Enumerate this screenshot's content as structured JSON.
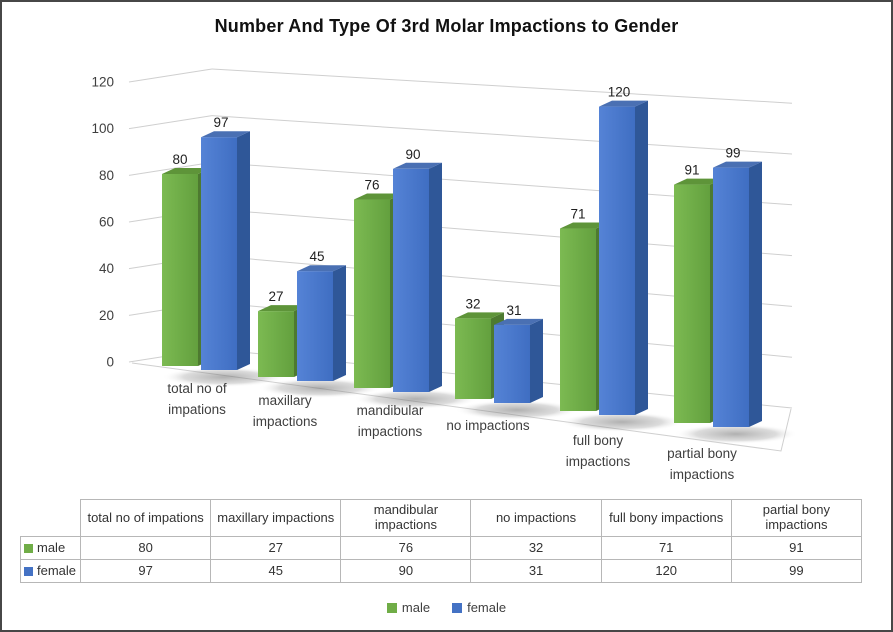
{
  "chart_data": {
    "type": "bar",
    "variant": "3d-clustered-column",
    "title": "Number And Type Of 3rd Molar Impactions to Gender",
    "categories": [
      "total no of impations",
      "maxillary impactions",
      "mandibular impactions",
      "no impactions",
      "full bony impactions",
      "partial bony impactions"
    ],
    "category_axis_lines": [
      [
        "total no of",
        "impations"
      ],
      [
        "maxillary",
        "impactions"
      ],
      [
        "mandibular",
        "impactions"
      ],
      [
        "no impactions"
      ],
      [
        "full bony",
        "impactions"
      ],
      [
        "partial bony",
        "impactions"
      ]
    ],
    "series": [
      {
        "name": "male",
        "color": "#70ad47",
        "values": [
          80,
          27,
          76,
          32,
          71,
          91
        ]
      },
      {
        "name": "female",
        "color": "#4472c4",
        "values": [
          97,
          45,
          90,
          31,
          120,
          99
        ]
      }
    ],
    "xlabel": "",
    "ylabel": "",
    "ylim": [
      0,
      120
    ],
    "yticks": [
      0,
      20,
      40,
      60,
      80,
      100,
      120
    ],
    "grid": true,
    "data_labels": true,
    "legend_position": "bottom"
  },
  "table": {
    "corner_label": "",
    "headers": [
      "total no of impations",
      "maxillary impactions",
      "mandibular impactions",
      "no impactions",
      "full bony impactions",
      "partial bony impactions"
    ],
    "rows": [
      {
        "label": "male",
        "swatch_color": "#70ad47",
        "values": [
          "80",
          "27",
          "76",
          "32",
          "71",
          "91"
        ]
      },
      {
        "label": "female",
        "swatch_color": "#4472c4",
        "values": [
          "97",
          "45",
          "90",
          "31",
          "120",
          "99"
        ]
      }
    ]
  },
  "legend": {
    "items": [
      {
        "label": "male",
        "color": "#70ad47"
      },
      {
        "label": "female",
        "color": "#4472c4"
      }
    ]
  },
  "colors": {
    "male_front_light": "#7cba52",
    "male_front_dark": "#63a03e",
    "male_top": "#5e9439",
    "male_side": "#4d7a30",
    "female_front_light": "#5583d6",
    "female_front_dark": "#3f6ec2",
    "female_top": "#4a70b3",
    "female_side": "#2f5798",
    "grid": "#cfcfcf",
    "text": "#3f3f3f"
  }
}
